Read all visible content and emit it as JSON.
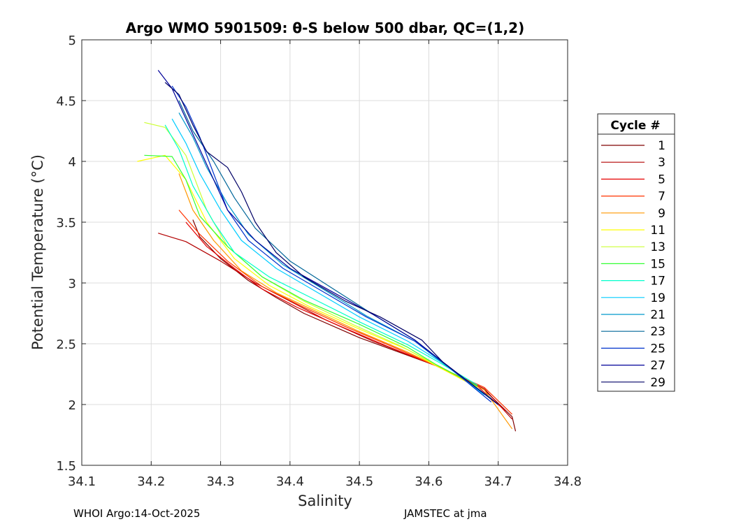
{
  "chart_data": {
    "type": "line",
    "title": "Argo WMO 5901509: θ-S below 500 dbar,  QC=(1,2)",
    "xlabel": "Salinity",
    "ylabel": "Potential Temperature (°C)",
    "xlim": [
      34.1,
      34.8
    ],
    "ylim": [
      1.5,
      5.0
    ],
    "xticks": [
      "34.1",
      "34.2",
      "34.3",
      "34.4",
      "34.5",
      "34.6",
      "34.7",
      "34.8"
    ],
    "yticks": [
      "1.5",
      "2",
      "2.5",
      "3",
      "3.5",
      "4",
      "4.5",
      "5"
    ],
    "grid": true,
    "legend_title": "Cycle #",
    "legend_position": "right",
    "series": [
      {
        "name": "1",
        "color": "#800000",
        "points": [
          [
            34.26,
            3.52
          ],
          [
            34.27,
            3.38
          ],
          [
            34.3,
            3.2
          ],
          [
            34.34,
            3.02
          ],
          [
            34.38,
            2.88
          ],
          [
            34.42,
            2.75
          ],
          [
            34.5,
            2.55
          ],
          [
            34.61,
            2.32
          ],
          [
            34.68,
            2.12
          ],
          [
            34.72,
            1.9
          ],
          [
            34.725,
            1.78
          ]
        ]
      },
      {
        "name": "3",
        "color": "#b30000",
        "points": [
          [
            34.21,
            3.41
          ],
          [
            34.25,
            3.34
          ],
          [
            34.3,
            3.18
          ],
          [
            34.35,
            3.0
          ],
          [
            34.4,
            2.85
          ],
          [
            34.45,
            2.7
          ],
          [
            34.52,
            2.52
          ],
          [
            34.61,
            2.32
          ],
          [
            34.68,
            2.13
          ],
          [
            34.72,
            1.88
          ]
        ]
      },
      {
        "name": "5",
        "color": "#e60000",
        "points": [
          [
            34.25,
            3.5
          ],
          [
            34.28,
            3.3
          ],
          [
            34.32,
            3.12
          ],
          [
            34.36,
            2.95
          ],
          [
            34.41,
            2.8
          ],
          [
            34.47,
            2.65
          ],
          [
            34.54,
            2.48
          ],
          [
            34.61,
            2.32
          ],
          [
            34.67,
            2.15
          ],
          [
            34.71,
            1.95
          ]
        ]
      },
      {
        "name": "7",
        "color": "#ff3300",
        "points": [
          [
            34.24,
            3.6
          ],
          [
            34.27,
            3.4
          ],
          [
            34.31,
            3.18
          ],
          [
            34.36,
            2.97
          ],
          [
            34.42,
            2.8
          ],
          [
            34.48,
            2.64
          ],
          [
            34.55,
            2.47
          ],
          [
            34.61,
            2.32
          ],
          [
            34.68,
            2.14
          ],
          [
            34.72,
            1.92
          ]
        ]
      },
      {
        "name": "9",
        "color": "#ff9900",
        "points": [
          [
            34.24,
            3.9
          ],
          [
            34.26,
            3.6
          ],
          [
            34.29,
            3.35
          ],
          [
            34.33,
            3.1
          ],
          [
            34.38,
            2.92
          ],
          [
            34.44,
            2.76
          ],
          [
            34.5,
            2.6
          ],
          [
            34.57,
            2.43
          ],
          [
            34.61,
            2.32
          ],
          [
            34.68,
            2.12
          ],
          [
            34.72,
            1.8
          ]
        ]
      },
      {
        "name": "11",
        "color": "#ffff00",
        "points": [
          [
            34.18,
            4.0
          ],
          [
            34.22,
            4.05
          ],
          [
            34.25,
            3.85
          ],
          [
            34.28,
            3.5
          ],
          [
            34.32,
            3.2
          ],
          [
            34.37,
            2.98
          ],
          [
            34.43,
            2.8
          ],
          [
            34.5,
            2.62
          ],
          [
            34.57,
            2.45
          ],
          [
            34.61,
            2.32
          ],
          [
            34.67,
            2.14
          ]
        ]
      },
      {
        "name": "13",
        "color": "#ccff33",
        "points": [
          [
            34.19,
            4.32
          ],
          [
            34.22,
            4.28
          ],
          [
            34.25,
            4.05
          ],
          [
            34.28,
            3.6
          ],
          [
            34.31,
            3.3
          ],
          [
            34.36,
            3.05
          ],
          [
            34.42,
            2.85
          ],
          [
            34.49,
            2.66
          ],
          [
            34.56,
            2.48
          ],
          [
            34.61,
            2.33
          ],
          [
            34.67,
            2.15
          ]
        ]
      },
      {
        "name": "15",
        "color": "#33ff33",
        "points": [
          [
            34.19,
            4.05
          ],
          [
            34.23,
            4.04
          ],
          [
            34.25,
            3.85
          ],
          [
            34.27,
            3.55
          ],
          [
            34.31,
            3.3
          ],
          [
            34.36,
            3.05
          ],
          [
            34.42,
            2.86
          ],
          [
            34.5,
            2.66
          ],
          [
            34.57,
            2.47
          ],
          [
            34.61,
            2.33
          ],
          [
            34.67,
            2.15
          ]
        ]
      },
      {
        "name": "17",
        "color": "#00ffcc",
        "points": [
          [
            34.22,
            4.3
          ],
          [
            34.24,
            4.1
          ],
          [
            34.26,
            3.8
          ],
          [
            34.29,
            3.5
          ],
          [
            34.32,
            3.25
          ],
          [
            34.37,
            3.05
          ],
          [
            34.43,
            2.88
          ],
          [
            34.5,
            2.68
          ],
          [
            34.57,
            2.49
          ],
          [
            34.62,
            2.33
          ],
          [
            34.67,
            2.16
          ]
        ]
      },
      {
        "name": "19",
        "color": "#00ccff",
        "points": [
          [
            34.23,
            4.35
          ],
          [
            34.25,
            4.15
          ],
          [
            34.27,
            3.9
          ],
          [
            34.3,
            3.6
          ],
          [
            34.33,
            3.35
          ],
          [
            34.38,
            3.12
          ],
          [
            34.44,
            2.92
          ],
          [
            34.5,
            2.72
          ],
          [
            34.57,
            2.52
          ],
          [
            34.62,
            2.34
          ],
          [
            34.68,
            2.08
          ]
        ]
      },
      {
        "name": "21",
        "color": "#0099cc",
        "points": [
          [
            34.24,
            4.4
          ],
          [
            34.26,
            4.2
          ],
          [
            34.28,
            3.95
          ],
          [
            34.31,
            3.65
          ],
          [
            34.34,
            3.4
          ],
          [
            34.39,
            3.15
          ],
          [
            34.45,
            2.94
          ],
          [
            34.51,
            2.73
          ],
          [
            34.58,
            2.52
          ],
          [
            34.62,
            2.34
          ],
          [
            34.69,
            2.05
          ]
        ]
      },
      {
        "name": "23",
        "color": "#006699",
        "points": [
          [
            34.24,
            4.5
          ],
          [
            34.26,
            4.25
          ],
          [
            34.29,
            4.0
          ],
          [
            34.32,
            3.7
          ],
          [
            34.35,
            3.45
          ],
          [
            34.4,
            3.18
          ],
          [
            34.46,
            2.96
          ],
          [
            34.52,
            2.74
          ],
          [
            34.58,
            2.53
          ],
          [
            34.62,
            2.35
          ],
          [
            34.7,
            2.0
          ]
        ]
      },
      {
        "name": "25",
        "color": "#0033cc",
        "points": [
          [
            34.23,
            4.62
          ],
          [
            34.25,
            4.45
          ],
          [
            34.27,
            4.2
          ],
          [
            34.29,
            3.9
          ],
          [
            34.31,
            3.6
          ],
          [
            34.34,
            3.35
          ],
          [
            34.39,
            3.12
          ],
          [
            34.45,
            2.92
          ],
          [
            34.51,
            2.72
          ],
          [
            34.58,
            2.52
          ],
          [
            34.62,
            2.35
          ],
          [
            34.69,
            2.02
          ]
        ]
      },
      {
        "name": "27",
        "color": "#000099",
        "points": [
          [
            34.21,
            4.75
          ],
          [
            34.23,
            4.6
          ],
          [
            34.25,
            4.35
          ],
          [
            34.27,
            4.1
          ],
          [
            34.29,
            3.85
          ],
          [
            34.31,
            3.6
          ],
          [
            34.35,
            3.35
          ],
          [
            34.4,
            3.12
          ],
          [
            34.46,
            2.93
          ],
          [
            34.52,
            2.74
          ],
          [
            34.58,
            2.53
          ],
          [
            34.62,
            2.35
          ],
          [
            34.7,
            2.0
          ]
        ]
      },
      {
        "name": "29",
        "color": "#000066",
        "points": [
          [
            34.22,
            4.65
          ],
          [
            34.24,
            4.55
          ],
          [
            34.26,
            4.3
          ],
          [
            34.28,
            4.08
          ],
          [
            34.31,
            3.95
          ],
          [
            34.33,
            3.75
          ],
          [
            34.35,
            3.5
          ],
          [
            34.38,
            3.25
          ],
          [
            34.42,
            3.05
          ],
          [
            34.48,
            2.85
          ],
          [
            34.53,
            2.72
          ],
          [
            34.59,
            2.53
          ],
          [
            34.62,
            2.35
          ],
          [
            34.7,
            2.0
          ]
        ]
      }
    ]
  },
  "footer": {
    "left": "WHOI Argo:14-Oct-2025",
    "right": "JAMSTEC at jma"
  }
}
